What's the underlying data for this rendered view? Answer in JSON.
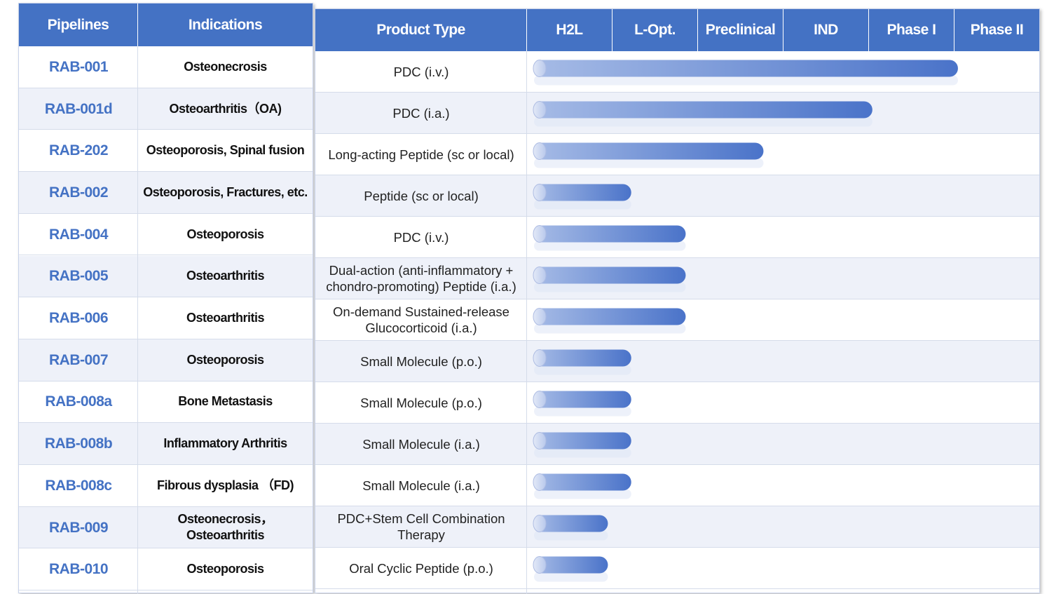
{
  "colors": {
    "header_bg": "#4472c4",
    "header_text": "#ffffff",
    "pipeline_text": "#4472c4",
    "alt_row_bg": "#eef1f9",
    "bar_start": "#a6bbe6",
    "bar_end": "#4a73c9"
  },
  "headers": {
    "pipelines": "Pipelines",
    "indications": "Indications",
    "product_type": "Product Type"
  },
  "chart_data": {
    "type": "bar",
    "orientation": "horizontal",
    "stages": [
      "H2L",
      "L-Opt.",
      "Preclinical",
      "IND",
      "Phase I",
      "Phase II"
    ],
    "categories": [
      "RAB-001",
      "RAB-001d",
      "RAB-202",
      "RAB-002",
      "RAB-004",
      "RAB-005",
      "RAB-006",
      "RAB-007",
      "RAB-008a",
      "RAB-008b",
      "RAB-008c",
      "RAB-009",
      "RAB-010"
    ],
    "values": [
      5.45,
      4.35,
      2.95,
      1.25,
      1.95,
      1.95,
      1.95,
      1.25,
      1.25,
      1.25,
      1.25,
      0.95,
      0.95
    ],
    "value_unit": "stage columns reached (0 = start of H2L, 6 = end of Phase II)",
    "xlim": [
      0,
      6
    ],
    "grid": false,
    "rows": [
      {
        "pipeline": "RAB-001",
        "indication": "Osteonecrosis",
        "product_type": "PDC (i.v.)"
      },
      {
        "pipeline": "RAB-001d",
        "indication": "Osteoarthritis（OA)",
        "product_type": "PDC  (i.a.)"
      },
      {
        "pipeline": "RAB-202",
        "indication": "Osteoporosis, Spinal fusion",
        "product_type": "Long-acting Peptide (sc or local)"
      },
      {
        "pipeline": "RAB-002",
        "indication": "Osteoporosis, Fractures, etc.",
        "product_type": "Peptide (sc or local)"
      },
      {
        "pipeline": "RAB-004",
        "indication": "Osteoporosis",
        "product_type": "PDC (i.v.)"
      },
      {
        "pipeline": "RAB-005",
        "indication": "Osteoarthritis",
        "product_type": "Dual-action (anti-inflammatory +\nchondro-promoting) Peptide (i.a.)"
      },
      {
        "pipeline": "RAB-006",
        "indication": "Osteoarthritis",
        "product_type": "On-demand Sustained-release\nGlucocorticoid  (i.a.)"
      },
      {
        "pipeline": "RAB-007",
        "indication": "Osteoporosis",
        "product_type": "Small Molecule (p.o.)"
      },
      {
        "pipeline": "RAB-008a",
        "indication": "Bone Metastasis",
        "product_type": "Small Molecule (p.o.)"
      },
      {
        "pipeline": "RAB-008b",
        "indication": "Inflammatory Arthritis",
        "product_type": "Small Molecule (i.a.)"
      },
      {
        "pipeline": "RAB-008c",
        "indication": "Fibrous dysplasia （FD)",
        "product_type": "Small Molecule (i.a.)"
      },
      {
        "pipeline": "RAB-009",
        "indication": "Osteonecrosis，\nOsteoarthritis",
        "product_type": "PDC+Stem Cell Combination\nTherapy"
      },
      {
        "pipeline": "RAB-010",
        "indication": "Osteoporosis",
        "product_type": "Oral Cyclic Peptide (p.o.)"
      }
    ]
  }
}
